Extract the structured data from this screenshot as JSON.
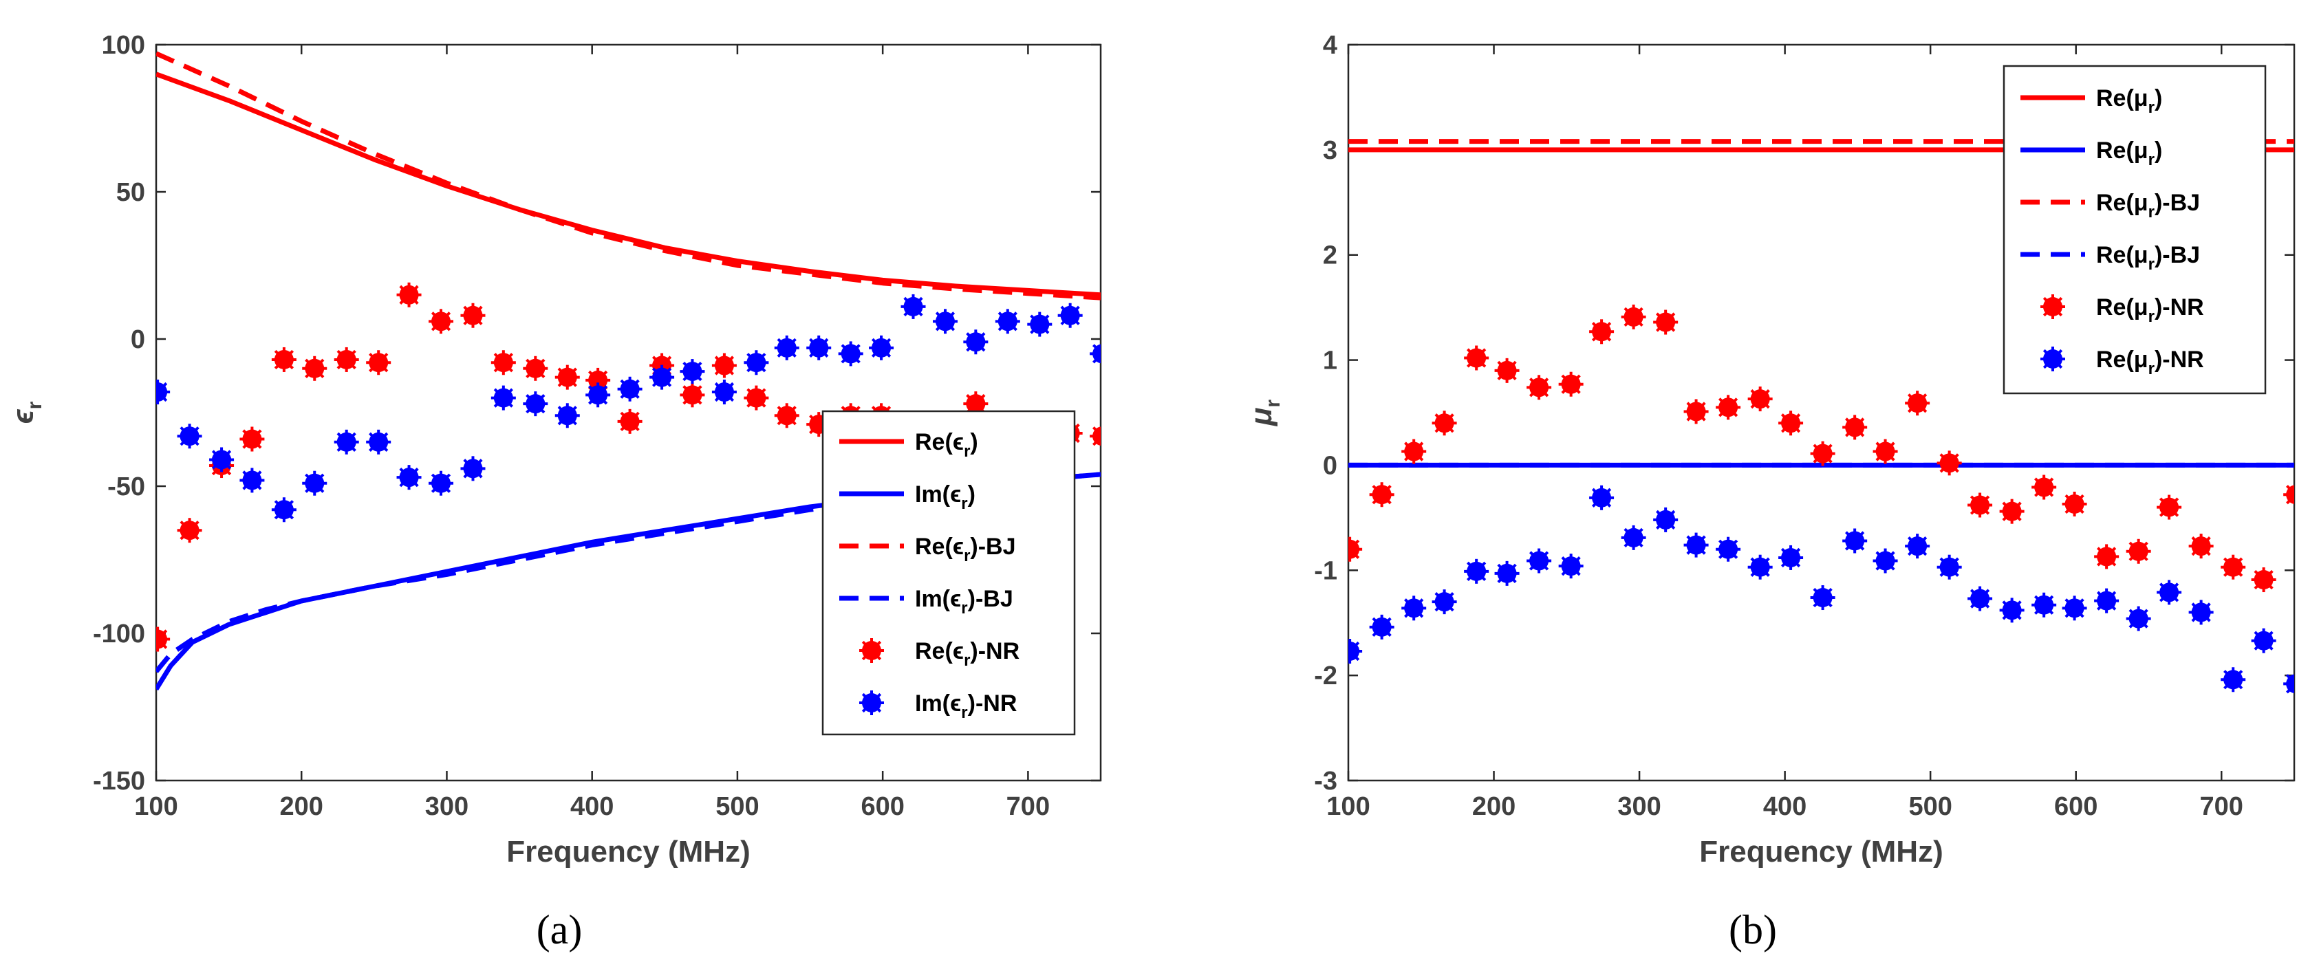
{
  "chart_data": [
    {
      "type": "line",
      "panel_label": "(a)",
      "xlabel": "Frequency (MHz)",
      "ylabel": "ϵ",
      "ylabel_sub": "r",
      "xlim": [
        100,
        750
      ],
      "ylim": [
        -150,
        100
      ],
      "xticks": [
        100,
        200,
        300,
        400,
        500,
        600,
        700
      ],
      "yticks": [
        -150,
        -100,
        -50,
        0,
        50,
        100
      ],
      "legend_position": "lower-right",
      "series": [
        {
          "name": "Re(ϵr)",
          "label_main": "Re(ϵ",
          "label_sub": "r",
          "label_tail": ")",
          "style": "solid",
          "marker": "none",
          "color": "#ff0000",
          "x": [
            100,
            150,
            200,
            250,
            300,
            350,
            400,
            450,
            500,
            550,
            600,
            650,
            700,
            750
          ],
          "y": [
            90,
            81,
            71,
            61,
            52,
            44,
            37,
            31,
            26.5,
            23,
            20,
            18,
            16.5,
            15
          ]
        },
        {
          "name": "Im(ϵr)",
          "label_main": "Im(ϵ",
          "label_sub": "r",
          "label_tail": ")",
          "style": "solid",
          "marker": "none",
          "color": "#0000ff",
          "x": [
            100,
            110,
            125,
            150,
            175,
            200,
            250,
            300,
            350,
            400,
            450,
            500,
            550,
            600,
            650,
            700,
            750
          ],
          "y": [
            -119,
            -111,
            -103,
            -97,
            -93,
            -89,
            -84,
            -79,
            -74,
            -69,
            -65,
            -61,
            -57,
            -54,
            -51,
            -48,
            -46
          ]
        },
        {
          "name": "Re(ϵr)-BJ",
          "label_main": "Re(ϵ",
          "label_sub": "r",
          "label_tail": ")-BJ",
          "style": "dashed",
          "marker": "none",
          "color": "#ff0000",
          "x": [
            100,
            150,
            200,
            250,
            300,
            350,
            400,
            450,
            500,
            550,
            600,
            650,
            700,
            750
          ],
          "y": [
            97,
            86,
            74,
            63,
            53,
            44,
            36,
            30,
            25,
            22,
            19,
            17,
            15.5,
            14
          ]
        },
        {
          "name": "Im(ϵr)-BJ",
          "label_main": "Im(ϵ",
          "label_sub": "r",
          "label_tail": ")-BJ",
          "style": "dashed",
          "marker": "none",
          "color": "#0000ff",
          "x": [
            100,
            110,
            125,
            150,
            175,
            200,
            250,
            300,
            350,
            400,
            450,
            500,
            550,
            600,
            650,
            700,
            750
          ],
          "y": [
            -113,
            -107,
            -102,
            -96,
            -92,
            -89,
            -84,
            -80,
            -75,
            -70,
            -66,
            -62,
            -58,
            -55,
            -51,
            -48,
            -46
          ]
        },
        {
          "name": "Re(ϵr)-NR",
          "label_main": "Re(ϵ",
          "label_sub": "r",
          "label_tail": ")-NR",
          "style": "none",
          "marker": "dot",
          "color": "#ff0000",
          "x": [
            101,
            123,
            145,
            166,
            188,
            209,
            231,
            253,
            274,
            296,
            318,
            339,
            361,
            383,
            404,
            426,
            448,
            469,
            491,
            513,
            534,
            556,
            578,
            599,
            621,
            643,
            664,
            686,
            708,
            729,
            751
          ],
          "y": [
            -102,
            -65,
            -43,
            -34,
            -7,
            -10,
            -7,
            -8,
            15,
            6,
            8,
            -8,
            -10,
            -13,
            -14,
            -28,
            -9,
            -19,
            -9,
            -20,
            -26,
            -29,
            -26,
            -26,
            -29,
            -30,
            -22,
            -29,
            -32,
            -32,
            -33
          ]
        },
        {
          "name": "Im(ϵr)-NR",
          "label_main": "Im(ϵ",
          "label_sub": "r",
          "label_tail": ")-NR",
          "style": "none",
          "marker": "dot",
          "color": "#0000ff",
          "x": [
            101,
            123,
            145,
            166,
            188,
            209,
            231,
            253,
            274,
            296,
            318,
            339,
            361,
            383,
            404,
            426,
            448,
            469,
            491,
            513,
            534,
            556,
            578,
            599,
            621,
            643,
            664,
            686,
            708,
            729,
            751
          ],
          "y": [
            -18,
            -33,
            -41,
            -48,
            -58,
            -49,
            -35,
            -35,
            -47,
            -49,
            -44,
            -20,
            -22,
            -26,
            -19,
            -17,
            -13,
            -11,
            -18,
            -8,
            -3,
            -3,
            -5,
            -3,
            11,
            6,
            -1,
            6,
            5,
            8,
            -5
          ]
        }
      ]
    },
    {
      "type": "line",
      "panel_label": "(b)",
      "xlabel": "Frequency (MHz)",
      "ylabel": "μ",
      "ylabel_sub": "r",
      "xlim": [
        100,
        750
      ],
      "ylim": [
        -3,
        4
      ],
      "xticks": [
        100,
        200,
        300,
        400,
        500,
        600,
        700
      ],
      "yticks": [
        -3,
        -2,
        -1,
        0,
        1,
        2,
        3,
        4
      ],
      "legend_position": "upper-right",
      "series": [
        {
          "name": "Re(μr)",
          "label_main": "Re(μ",
          "label_sub": "r",
          "label_tail": ")",
          "style": "solid",
          "marker": "none",
          "color": "#ff0000",
          "x": [
            100,
            750
          ],
          "y": [
            3.0,
            3.0
          ]
        },
        {
          "name": "Re(μr)",
          "label_main": "Re(μ",
          "label_sub": "r",
          "label_tail": ")",
          "style": "solid",
          "marker": "none",
          "color": "#0000ff",
          "x": [
            100,
            750
          ],
          "y": [
            0.0,
            0.0
          ]
        },
        {
          "name": "Re(μr)-BJ",
          "label_main": "Re(μ",
          "label_sub": "r",
          "label_tail": ")-BJ",
          "style": "dashed",
          "marker": "none",
          "color": "#ff0000",
          "x": [
            100,
            750
          ],
          "y": [
            3.08,
            3.08
          ]
        },
        {
          "name": "Re(μr)-BJ",
          "label_main": "Re(μ",
          "label_sub": "r",
          "label_tail": ")-BJ",
          "style": "dashed",
          "marker": "none",
          "color": "#0000ff",
          "x": [
            100,
            750
          ],
          "y": [
            0.0,
            0.0
          ]
        },
        {
          "name": "Re(μr)-NR",
          "label_main": "Re(μ",
          "label_sub": "r",
          "label_tail": ")-NR",
          "style": "none",
          "marker": "dot",
          "color": "#ff0000",
          "x": [
            101,
            123,
            145,
            166,
            188,
            209,
            231,
            253,
            274,
            296,
            318,
            339,
            361,
            383,
            404,
            426,
            448,
            469,
            491,
            513,
            534,
            556,
            578,
            599,
            621,
            643,
            664,
            686,
            708,
            729,
            751
          ],
          "y": [
            -0.8,
            -0.28,
            0.13,
            0.4,
            1.02,
            0.9,
            0.74,
            0.77,
            1.27,
            1.41,
            1.36,
            0.51,
            0.55,
            0.63,
            0.4,
            0.11,
            0.36,
            0.13,
            0.59,
            0.02,
            -0.38,
            -0.44,
            -0.21,
            -0.37,
            -0.87,
            -0.82,
            -0.4,
            -0.77,
            -0.97,
            -1.09,
            -0.28
          ]
        },
        {
          "name": "Re(μr)-NR",
          "label_main": "Re(μ",
          "label_sub": "r",
          "label_tail": ")-NR",
          "style": "none",
          "marker": "dot",
          "color": "#0000ff",
          "x": [
            101,
            123,
            145,
            166,
            188,
            209,
            231,
            253,
            274,
            296,
            318,
            339,
            361,
            383,
            404,
            426,
            448,
            469,
            491,
            513,
            534,
            556,
            578,
            599,
            621,
            643,
            664,
            686,
            708,
            729,
            751
          ],
          "y": [
            -1.77,
            -1.54,
            -1.36,
            -1.3,
            -1.01,
            -1.03,
            -0.91,
            -0.96,
            -0.31,
            -0.69,
            -0.52,
            -0.76,
            -0.8,
            -0.97,
            -0.88,
            -1.26,
            -0.72,
            -0.91,
            -0.77,
            -0.97,
            -1.27,
            -1.38,
            -1.33,
            -1.36,
            -1.29,
            -1.46,
            -1.21,
            -1.4,
            -2.04,
            -1.67,
            -2.08
          ]
        }
      ]
    }
  ]
}
